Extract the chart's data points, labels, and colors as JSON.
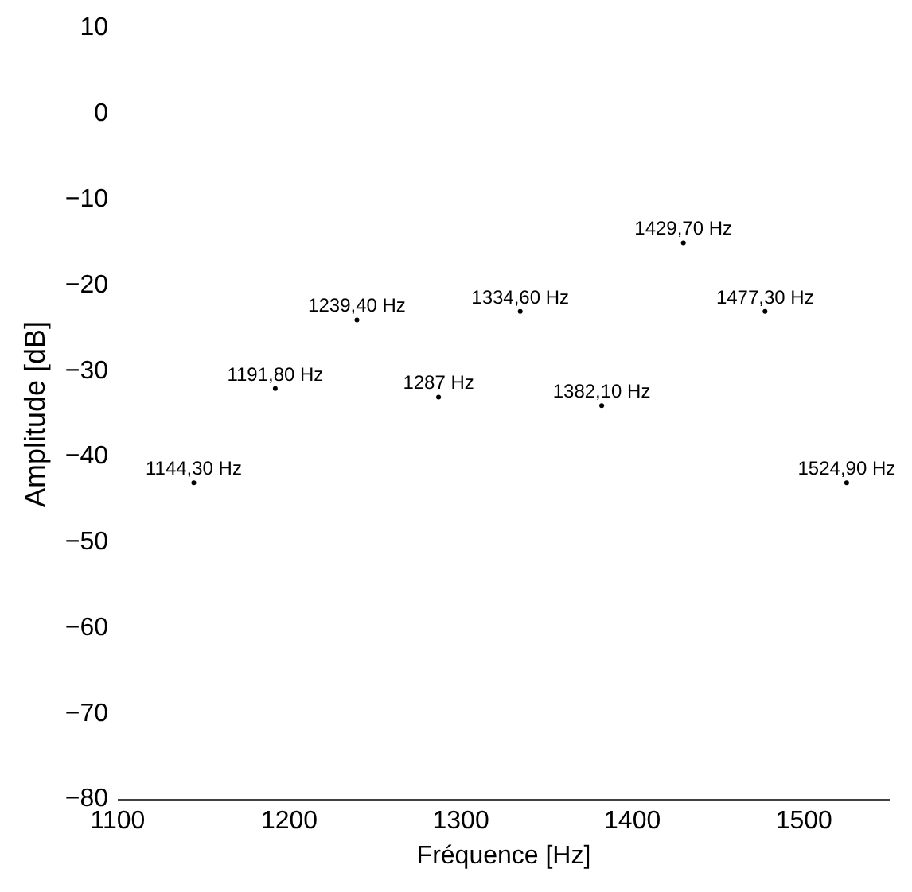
{
  "chart_data": {
    "type": "scatter",
    "xlabel": "Fréquence [Hz]",
    "ylabel": "Amplitude [dB]",
    "x": [
      1144.3,
      1191.8,
      1239.4,
      1287,
      1334.6,
      1382.1,
      1429.7,
      1477.3,
      1524.9
    ],
    "values": [
      -43,
      -32,
      -24,
      -33,
      -23,
      -34,
      -15,
      -23,
      -43
    ],
    "marker": "circle",
    "color": "#000000",
    "xlim": [
      1100,
      1550
    ],
    "xticks": [
      1100,
      1200,
      1300,
      1400,
      1500
    ],
    "ylim": [
      -80,
      10
    ],
    "yticks": [
      -80,
      -70,
      -60,
      -50,
      -40,
      -30,
      -20,
      -10,
      0,
      10
    ],
    "annotations": [
      {
        "text": "1144,30 Hz",
        "x": 1144.3,
        "y": -43
      },
      {
        "text": "1191,80 Hz",
        "x": 1191.8,
        "y": -32
      },
      {
        "text": "1239,40 Hz",
        "x": 1239.4,
        "y": -24
      },
      {
        "text": "1287 Hz",
        "x": 1287,
        "y": -33
      },
      {
        "text": "1334,60 Hz",
        "x": 1334.6,
        "y": -23
      },
      {
        "text": "1382,10 Hz",
        "x": 1382.1,
        "y": -34
      },
      {
        "text": "1429,70 Hz",
        "x": 1429.7,
        "y": -15
      },
      {
        "text": "1477,30 Hz",
        "x": 1477.3,
        "y": -23
      },
      {
        "text": "1524,90 Hz",
        "x": 1524.9,
        "y": -43
      }
    ]
  }
}
